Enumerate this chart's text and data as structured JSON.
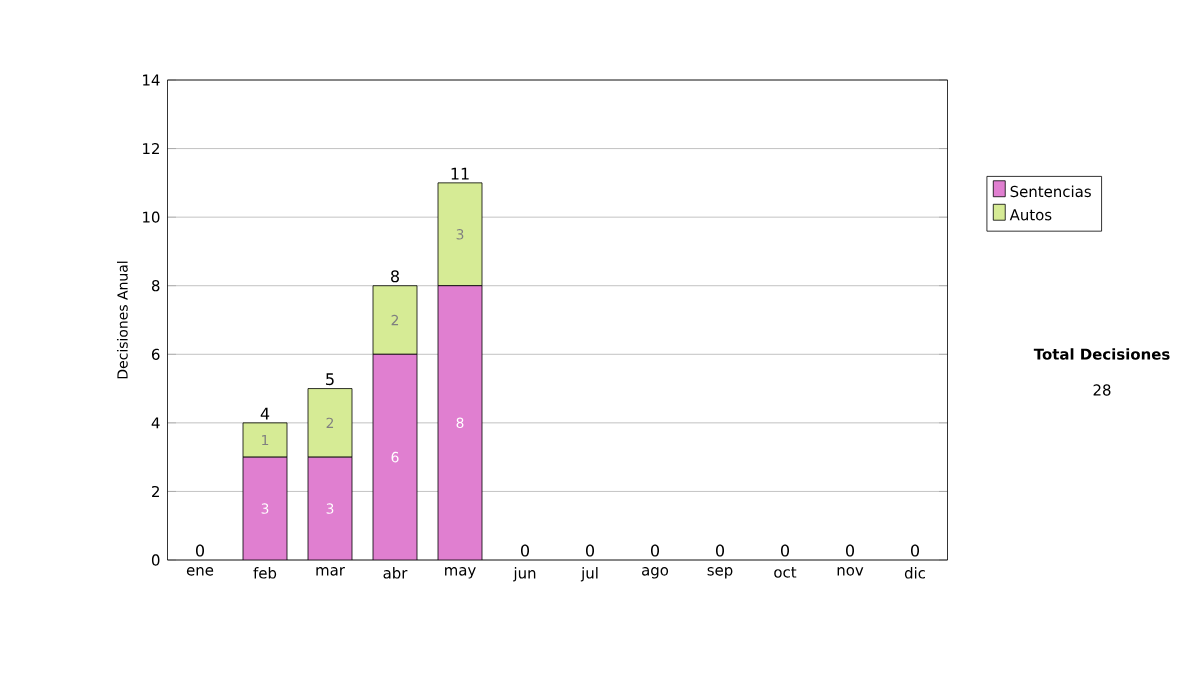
{
  "chart_data": {
    "type": "bar",
    "stacked": true,
    "ylabel": "Decisiones Anual",
    "categories": [
      "ene",
      "feb",
      "mar",
      "abr",
      "may",
      "jun",
      "jul",
      "ago",
      "sep",
      "oct",
      "nov",
      "dic"
    ],
    "series": [
      {
        "name": "Sentencias",
        "color": "#e07fd0",
        "values": [
          0,
          3,
          3,
          6,
          8,
          0,
          0,
          0,
          0,
          0,
          0,
          0
        ],
        "value_labels": [
          null,
          "3",
          "3",
          "6",
          "8",
          null,
          null,
          null,
          null,
          null,
          null,
          null
        ]
      },
      {
        "name": "Autos",
        "color": "#d6eb95",
        "values": [
          0,
          1,
          2,
          2,
          3,
          0,
          0,
          0,
          0,
          0,
          0,
          0
        ],
        "value_labels": [
          null,
          "1",
          "2",
          "2",
          "3",
          null,
          null,
          null,
          null,
          null,
          null,
          null
        ]
      }
    ],
    "totals": [
      "0",
      "4",
      "5",
      "8",
      "11",
      "0",
      "0",
      "0",
      "0",
      "0",
      "0",
      "0"
    ],
    "ylim": [
      0,
      14
    ],
    "yticks": [
      0,
      2,
      4,
      6,
      8,
      10,
      12,
      14
    ],
    "grid": "y",
    "legend": "right",
    "annotations": [
      "Total Decisiones",
      "28"
    ]
  }
}
